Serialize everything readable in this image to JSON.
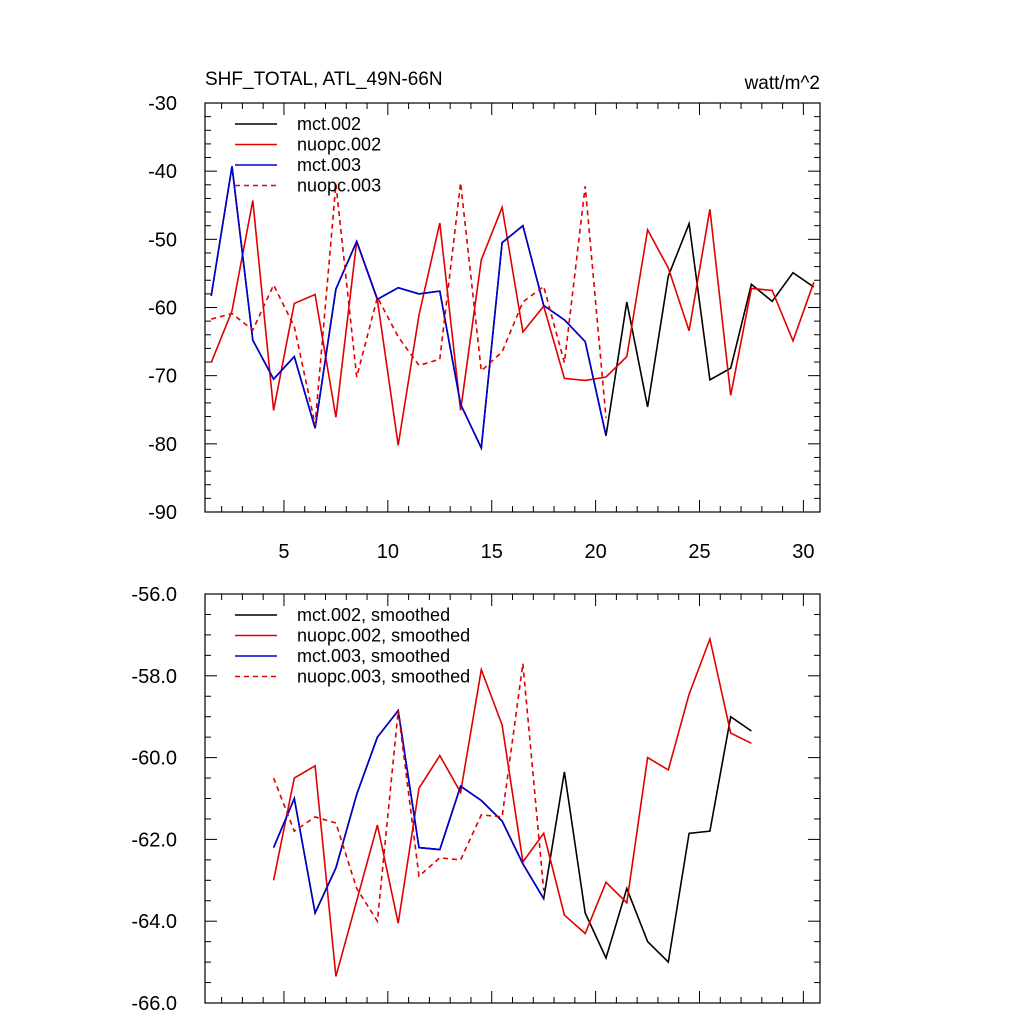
{
  "chart_data": [
    {
      "type": "line",
      "title": "SHF_TOTAL, ATL_49N-66N",
      "units": "watt/m^2",
      "xlabel": "",
      "ylabel": "",
      "xlim": [
        1.2,
        30.8
      ],
      "ylim": [
        -90,
        -30
      ],
      "grid": false,
      "legend_position": "top-left",
      "y_ticks": [
        {
          "value": -30,
          "label": "-30"
        },
        {
          "value": -40,
          "label": "-40"
        },
        {
          "value": -50,
          "label": "-50"
        },
        {
          "value": -60,
          "label": "-60"
        },
        {
          "value": -70,
          "label": "-70"
        },
        {
          "value": -80,
          "label": "-80"
        },
        {
          "value": -90,
          "label": "-90"
        }
      ],
      "x_ticks": [
        {
          "value": 5,
          "label": "5"
        },
        {
          "value": 10,
          "label": "10"
        },
        {
          "value": 15,
          "label": "15"
        },
        {
          "value": 20,
          "label": "20"
        },
        {
          "value": 25,
          "label": "25"
        },
        {
          "value": 30,
          "label": "30"
        }
      ],
      "series": [
        {
          "name": "mct.002",
          "color": "#000000",
          "dash": false,
          "x": [
            1.5,
            2.5,
            3.5,
            4.5,
            5.5,
            6.5,
            7.5,
            8.5,
            9.5,
            10.5,
            11.5,
            12.5,
            13.5,
            14.5,
            15.5,
            16.5,
            17.5,
            18.5,
            19.5,
            20.5,
            21.5,
            22.5,
            23.5,
            24.5,
            25.5,
            26.5,
            27.5,
            28.5,
            29.5,
            30.5
          ],
          "y": [
            -58.3,
            -39.3,
            -64.8,
            -70.5,
            -67.2,
            -77.7,
            -57.3,
            -50.3,
            -58.8,
            -57.1,
            -58.0,
            -57.6,
            -74.2,
            -80.6,
            -50.5,
            -48.0,
            -59.7,
            -61.8,
            -65.0,
            -78.8,
            -59.2,
            -74.6,
            -55.4,
            -47.7,
            -70.6,
            -68.9,
            -56.6,
            -59.1,
            -54.9,
            -57.0
          ]
        },
        {
          "name": "nuopc.002",
          "color": "#e00000",
          "dash": false,
          "x": [
            1.5,
            2.5,
            3.5,
            4.5,
            5.5,
            6.5,
            7.5,
            8.5,
            9.5,
            10.5,
            11.5,
            12.5,
            13.5,
            14.5,
            15.5,
            16.5,
            17.5,
            18.5,
            19.5,
            20.5,
            21.5,
            22.5,
            23.5,
            24.5,
            25.5,
            26.5,
            27.5,
            28.5,
            29.5,
            30.5
          ],
          "y": [
            -68.1,
            -60.5,
            -44.3,
            -75.1,
            -59.4,
            -58.1,
            -76.1,
            -50.3,
            -58.9,
            -80.2,
            -61.1,
            -47.6,
            -75.1,
            -53.0,
            -45.3,
            -63.6,
            -59.8,
            -70.4,
            -70.7,
            -70.2,
            -67.2,
            -48.6,
            -54.2,
            -63.4,
            -45.6,
            -72.9,
            -57.2,
            -57.5,
            -64.9,
            -56.3
          ]
        },
        {
          "name": "mct.003",
          "color": "#0000d0",
          "dash": false,
          "x": [
            1.5,
            2.5,
            3.5,
            4.5,
            5.5,
            6.5,
            7.5,
            8.5,
            9.5,
            10.5,
            11.5,
            12.5,
            13.5,
            14.5,
            15.5,
            16.5,
            17.5,
            18.5,
            19.5,
            20.5
          ],
          "y": [
            -58.3,
            -39.3,
            -64.8,
            -70.5,
            -67.2,
            -77.7,
            -57.3,
            -50.3,
            -58.8,
            -57.1,
            -58.0,
            -57.6,
            -74.2,
            -80.6,
            -50.5,
            -48.0,
            -59.7,
            -61.8,
            -65.0,
            -78.8
          ]
        },
        {
          "name": "nuopc.003",
          "color": "#e00000",
          "dash": true,
          "x": [
            1.5,
            2.5,
            3.5,
            4.5,
            5.5,
            6.5,
            7.5,
            8.5,
            9.5,
            10.5,
            11.5,
            12.5,
            13.5,
            14.5,
            15.5,
            16.5,
            17.5,
            18.5,
            19.5,
            20.5
          ],
          "y": [
            -61.7,
            -60.9,
            -63.3,
            -56.7,
            -62.8,
            -77.2,
            -41.9,
            -70.2,
            -58.5,
            -64.3,
            -68.5,
            -67.6,
            -41.7,
            -69.3,
            -66.5,
            -59.2,
            -56.9,
            -68.1,
            -42.2,
            -76.2
          ]
        }
      ]
    },
    {
      "type": "line",
      "title": "",
      "xlabel": "",
      "ylabel": "",
      "xlim": [
        1.2,
        30.8
      ],
      "ylim": [
        -66,
        -56
      ],
      "grid": false,
      "legend_position": "top-left",
      "y_ticks": [
        {
          "value": -56,
          "label": "-56.0"
        },
        {
          "value": -58,
          "label": "-58.0"
        },
        {
          "value": -60,
          "label": "-60.0"
        },
        {
          "value": -62,
          "label": "-62.0"
        },
        {
          "value": -64,
          "label": "-64.0"
        },
        {
          "value": -66,
          "label": "-66.0"
        }
      ],
      "x_ticks": [],
      "series": [
        {
          "name": "mct.002, smoothed",
          "color": "#000000",
          "dash": false,
          "x": [
            4.5,
            5.5,
            6.5,
            7.5,
            8.5,
            9.5,
            10.5,
            11.5,
            12.5,
            13.5,
            14.5,
            15.5,
            16.5,
            17.5,
            18.5,
            19.5,
            20.5,
            21.5,
            22.5,
            23.5,
            24.5,
            25.5,
            26.5,
            27.5
          ],
          "y": [
            -62.2,
            -61.0,
            -63.8,
            -62.7,
            -60.9,
            -59.5,
            -58.85,
            -62.2,
            -62.25,
            -60.7,
            -61.05,
            -61.55,
            -62.6,
            -63.45,
            -60.35,
            -63.8,
            -64.9,
            -63.2,
            -64.5,
            -65.0,
            -61.85,
            -61.8,
            -59.0,
            -59.35
          ]
        },
        {
          "name": "nuopc.002, smoothed",
          "color": "#e00000",
          "dash": false,
          "x": [
            4.5,
            5.5,
            6.5,
            7.5,
            8.5,
            9.5,
            10.5,
            11.5,
            12.5,
            13.5,
            14.5,
            15.5,
            16.5,
            17.5,
            18.5,
            19.5,
            20.5,
            21.5,
            22.5,
            23.5,
            24.5,
            25.5,
            26.5,
            27.5
          ],
          "y": [
            -63.0,
            -60.5,
            -60.2,
            -65.35,
            -63.5,
            -61.65,
            -64.05,
            -60.75,
            -59.95,
            -60.85,
            -57.85,
            -59.2,
            -62.55,
            -61.85,
            -63.85,
            -64.3,
            -63.05,
            -63.55,
            -60.0,
            -60.3,
            -58.45,
            -57.1,
            -59.4,
            -59.65
          ]
        },
        {
          "name": "mct.003, smoothed",
          "color": "#0000d0",
          "dash": false,
          "x": [
            4.5,
            5.5,
            6.5,
            7.5,
            8.5,
            9.5,
            10.5,
            11.5,
            12.5,
            13.5,
            14.5,
            15.5,
            16.5,
            17.5
          ],
          "y": [
            -62.2,
            -61.0,
            -63.8,
            -62.7,
            -60.9,
            -59.5,
            -58.85,
            -62.2,
            -62.25,
            -60.7,
            -61.05,
            -61.55,
            -62.6,
            -63.45
          ]
        },
        {
          "name": "nuopc.003, smoothed",
          "color": "#e00000",
          "dash": true,
          "x": [
            4.5,
            5.5,
            6.5,
            7.5,
            8.5,
            9.5,
            10.5,
            11.5,
            12.5,
            13.5,
            14.5,
            15.5,
            16.5,
            17.5
          ],
          "y": [
            -60.5,
            -61.8,
            -61.45,
            -61.6,
            -63.2,
            -64.0,
            -58.85,
            -62.9,
            -62.45,
            -62.5,
            -61.4,
            -61.45,
            -57.7,
            -63.25
          ]
        }
      ]
    }
  ]
}
